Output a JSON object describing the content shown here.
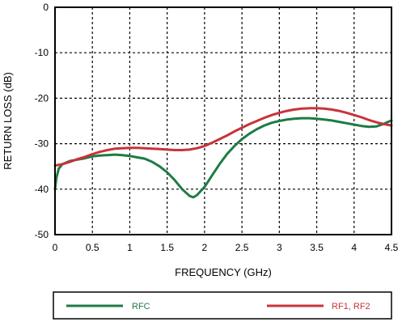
{
  "chart_data": {
    "type": "line",
    "xlabel": "FREQUENCY (GHz)",
    "ylabel": "RETURN LOSS (dB)",
    "xlim": [
      0,
      4.5
    ],
    "ylim": [
      -50,
      0
    ],
    "x_ticks": [
      "0",
      "0.5",
      "1",
      "1.5",
      "2",
      "2.5",
      "3",
      "3.5",
      "4",
      "4.5"
    ],
    "y_ticks": [
      "0",
      "-10",
      "-20",
      "-30",
      "-40",
      "-50"
    ],
    "grid": true,
    "grid_style": "dashed",
    "legend_position": "bottom",
    "series": [
      {
        "name": "RFC",
        "color": "#1e7b45",
        "points": [
          [
            0.0,
            -40
          ],
          [
            0.02,
            -37.5
          ],
          [
            0.05,
            -35.5
          ],
          [
            0.1,
            -34.5
          ],
          [
            0.2,
            -33.8
          ],
          [
            0.3,
            -33.5
          ],
          [
            0.4,
            -33.2
          ],
          [
            0.5,
            -32.8
          ],
          [
            0.6,
            -32.6
          ],
          [
            0.7,
            -32.5
          ],
          [
            0.8,
            -32.4
          ],
          [
            0.9,
            -32.5
          ],
          [
            1.0,
            -32.7
          ],
          [
            1.1,
            -33.0
          ],
          [
            1.2,
            -33.3
          ],
          [
            1.3,
            -34.0
          ],
          [
            1.4,
            -35.0
          ],
          [
            1.5,
            -36.3
          ],
          [
            1.6,
            -38.0
          ],
          [
            1.7,
            -40.0
          ],
          [
            1.8,
            -41.5
          ],
          [
            1.85,
            -41.8
          ],
          [
            1.9,
            -41.3
          ],
          [
            2.0,
            -39.5
          ],
          [
            2.1,
            -37.0
          ],
          [
            2.2,
            -34.5
          ],
          [
            2.3,
            -32.3
          ],
          [
            2.4,
            -30.5
          ],
          [
            2.5,
            -29.0
          ],
          [
            2.6,
            -27.8
          ],
          [
            2.7,
            -26.8
          ],
          [
            2.8,
            -26.0
          ],
          [
            2.9,
            -25.4
          ],
          [
            3.0,
            -25.0
          ],
          [
            3.1,
            -24.7
          ],
          [
            3.2,
            -24.5
          ],
          [
            3.3,
            -24.4
          ],
          [
            3.4,
            -24.4
          ],
          [
            3.5,
            -24.5
          ],
          [
            3.6,
            -24.7
          ],
          [
            3.7,
            -24.9
          ],
          [
            3.8,
            -25.2
          ],
          [
            3.9,
            -25.5
          ],
          [
            4.0,
            -25.8
          ],
          [
            4.1,
            -26.1
          ],
          [
            4.2,
            -26.3
          ],
          [
            4.3,
            -26.2
          ],
          [
            4.4,
            -25.6
          ],
          [
            4.5,
            -24.9
          ]
        ]
      },
      {
        "name": "RF1, RF2",
        "color": "#c8333a",
        "points": [
          [
            0.0,
            -34.8
          ],
          [
            0.1,
            -34.5
          ],
          [
            0.2,
            -34.0
          ],
          [
            0.3,
            -33.4
          ],
          [
            0.4,
            -32.9
          ],
          [
            0.5,
            -32.3
          ],
          [
            0.6,
            -31.8
          ],
          [
            0.7,
            -31.4
          ],
          [
            0.8,
            -31.1
          ],
          [
            0.9,
            -31.0
          ],
          [
            1.0,
            -30.9
          ],
          [
            1.1,
            -30.9
          ],
          [
            1.2,
            -31.0
          ],
          [
            1.3,
            -31.1
          ],
          [
            1.4,
            -31.2
          ],
          [
            1.5,
            -31.3
          ],
          [
            1.6,
            -31.4
          ],
          [
            1.7,
            -31.4
          ],
          [
            1.8,
            -31.3
          ],
          [
            1.9,
            -31.0
          ],
          [
            2.0,
            -30.5
          ],
          [
            2.1,
            -29.8
          ],
          [
            2.2,
            -29.0
          ],
          [
            2.3,
            -28.2
          ],
          [
            2.4,
            -27.3
          ],
          [
            2.5,
            -26.5
          ],
          [
            2.6,
            -25.7
          ],
          [
            2.7,
            -25.0
          ],
          [
            2.8,
            -24.3
          ],
          [
            2.9,
            -23.7
          ],
          [
            3.0,
            -23.2
          ],
          [
            3.1,
            -22.8
          ],
          [
            3.2,
            -22.5
          ],
          [
            3.3,
            -22.3
          ],
          [
            3.4,
            -22.2
          ],
          [
            3.5,
            -22.2
          ],
          [
            3.6,
            -22.3
          ],
          [
            3.7,
            -22.5
          ],
          [
            3.8,
            -22.8
          ],
          [
            3.9,
            -23.2
          ],
          [
            4.0,
            -23.7
          ],
          [
            4.1,
            -24.2
          ],
          [
            4.2,
            -24.8
          ],
          [
            4.3,
            -25.3
          ],
          [
            4.4,
            -25.7
          ],
          [
            4.5,
            -26.0
          ]
        ]
      }
    ]
  }
}
